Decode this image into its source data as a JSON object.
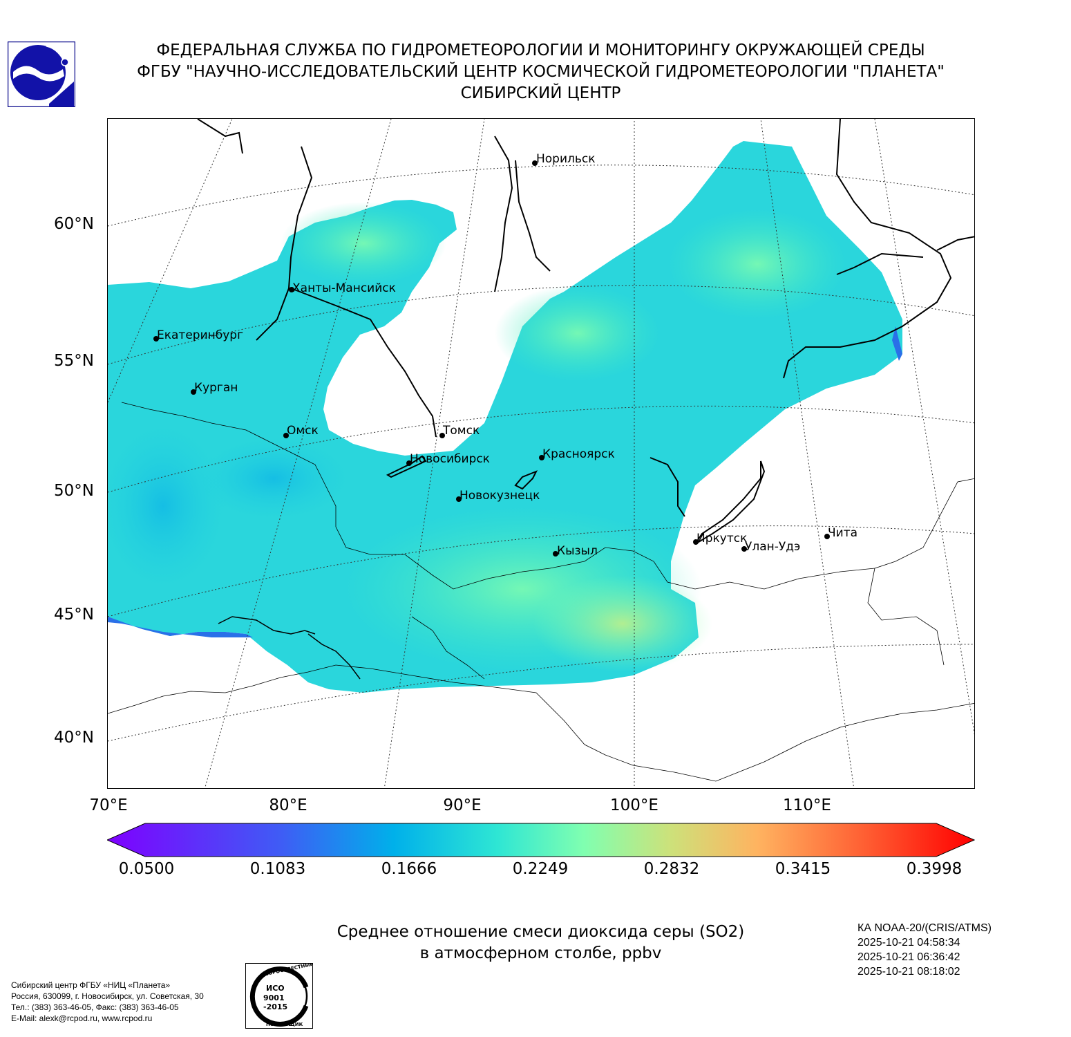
{
  "header": {
    "line1": "ФЕДЕРАЛЬНАЯ СЛУЖБА ПО ГИДРОМЕТЕОРОЛОГИИ И МОНИТОРИНГУ ОКРУЖАЮЩЕЙ СРЕДЫ",
    "line2": "ФГБУ \"НАУЧНО-ИССЛЕДОВАТЕЛЬСКИЙ ЦЕНТР КОСМИЧЕСКОЙ ГИДРОМЕТЕОРОЛОГИИ \"ПЛАНЕТА\"",
    "line3": "СИБИРСКИЙ ЦЕНТР"
  },
  "map": {
    "lat_labels": [
      "60°N",
      "55°N",
      "50°N",
      "45°N",
      "40°N"
    ],
    "lon_labels": [
      "70°E",
      "80°E",
      "90°E",
      "100°E",
      "110°E"
    ],
    "cities": [
      {
        "name": "Норильск"
      },
      {
        "name": "Ханты-Мансийск"
      },
      {
        "name": "Екатеринбург"
      },
      {
        "name": "Курган"
      },
      {
        "name": "Омск"
      },
      {
        "name": "Томск"
      },
      {
        "name": "Новосибирск"
      },
      {
        "name": "Красноярск"
      },
      {
        "name": "Новокузнецк"
      },
      {
        "name": "Кызыл"
      },
      {
        "name": "Иркутск"
      },
      {
        "name": "Улан-Удэ"
      },
      {
        "name": "Чита"
      }
    ]
  },
  "colorbar": {
    "min": 0.05,
    "max": 0.3998,
    "ticks": [
      "0.0500",
      "0.1083",
      "0.1666",
      "0.2249",
      "0.2832",
      "0.3415",
      "0.3998"
    ],
    "colors": [
      "#7f00ff",
      "#3f5cf5",
      "#00b0ea",
      "#2ee6d4",
      "#80ffb0",
      "#cde17a",
      "#ffb360",
      "#ff5a30",
      "#ff0000"
    ]
  },
  "title": {
    "line1": "Среднее отношение смеси диоксида серы (SO2)",
    "line2": "в атмосферном столбе, ppbv"
  },
  "satellite": {
    "name": "КА NOAA-20/(CRIS/ATMS)",
    "times": [
      "2025-10-21 04:58:34",
      "2025-10-21 06:36:42",
      "2025-10-21 08:18:02"
    ]
  },
  "footer": {
    "line1": "Сибирский центр ФГБУ «НИЦ «Планета»",
    "line2": "Россия, 630099, г. Новосибирск, ул. Советская, 30",
    "line3": "Тел.: (383) 363-46-05, Факс: (383) 363-46-05",
    "line4": "E-Mail: alexk@rcpod.ru, www.rcpod.ru"
  },
  "iso_badge": {
    "top_text": "ДОБРОСОВЕСТНЫЙ",
    "mid_text": "ИСО 9001 -2015",
    "bottom_text": "ПОСТАВЩИК"
  }
}
